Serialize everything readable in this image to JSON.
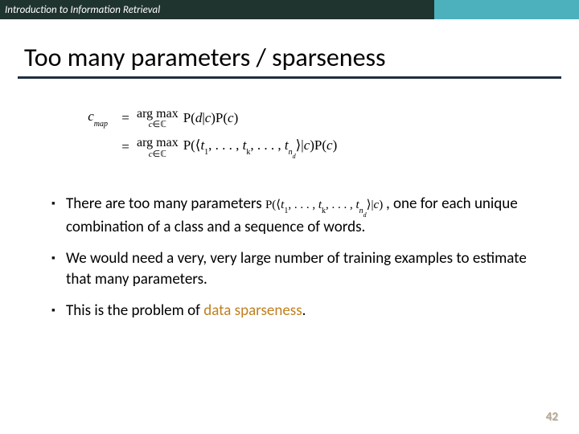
{
  "header": {
    "course_title": "Introduction to Information Retrieval",
    "bar_color": "#1f332f",
    "accent_color": "#4db0bd"
  },
  "slide": {
    "title": "Too many parameters / sparseness",
    "underline_color": "#1f2f40",
    "page_number": "42"
  },
  "equation": {
    "lhs": "c",
    "lhs_sub": "map",
    "eq_symbol": "=",
    "argmax_label": "arg max",
    "argmax_sub_var": "c",
    "argmax_sub_set": "ℂ",
    "line1_rhs": "P(d|c)P(c)",
    "line2_rhs_open": "P(⟨",
    "line2_t1": "t",
    "line2_t1_sub": "1",
    "line2_mid": ", . . . , ",
    "line2_tk": "t",
    "line2_tk_sub": "k",
    "line2_mid2": ", . . . , ",
    "line2_tn": "t",
    "line2_tn_sub": "n",
    "line2_tn_sub2": "d",
    "line2_close": "⟩|c)P(c)"
  },
  "bullets": {
    "items": [
      {
        "pre": "There are too many parameters ",
        "math_open": "P(⟨",
        "math_t1": "t",
        "math_t1_sub": "1",
        "math_mid": ", . . . , ",
        "math_tk": "t",
        "math_tk_sub": "k",
        "math_mid2": ", . . . , ",
        "math_tn": "t",
        "math_tn_sub": "n",
        "math_tn_sub2": "d",
        "math_close": "⟩|c)",
        "post": " , one for each unique combination of a class and a sequence of words."
      },
      {
        "text": "We would need a very, very large number of training examples to estimate that many parameters."
      },
      {
        "pre": "This is the problem of ",
        "highlight": "data sparseness",
        "post": "."
      }
    ]
  },
  "style": {
    "title_fontsize": 32,
    "body_fontsize": 19,
    "highlight_color": "#c08020"
  }
}
